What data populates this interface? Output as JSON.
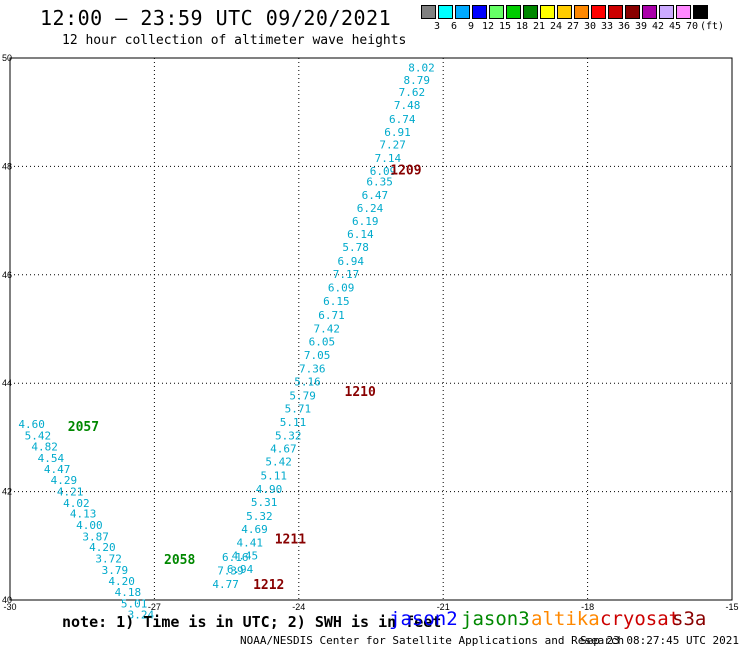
{
  "title": "12:00 – 23:59 UTC 09/20/2021",
  "subtitle": "12 hour collection of altimeter wave heights",
  "legend": {
    "unit": "(ft)",
    "items": [
      {
        "label": "3",
        "color": "#808080"
      },
      {
        "label": "6",
        "color": "#00ffff"
      },
      {
        "label": "9",
        "color": "#00aaff"
      },
      {
        "label": "12",
        "color": "#0000ff"
      },
      {
        "label": "15",
        "color": "#66ff66"
      },
      {
        "label": "18",
        "color": "#00cc00"
      },
      {
        "label": "21",
        "color": "#008800"
      },
      {
        "label": "24",
        "color": "#ffff00"
      },
      {
        "label": "27",
        "color": "#ffcc00"
      },
      {
        "label": "30",
        "color": "#ff8800"
      },
      {
        "label": "33",
        "color": "#ff0000"
      },
      {
        "label": "36",
        "color": "#cc0000"
      },
      {
        "label": "39",
        "color": "#880000"
      },
      {
        "label": "42",
        "color": "#aa00aa"
      },
      {
        "label": "45",
        "color": "#ccaaff"
      },
      {
        "label": "70",
        "color": "#ff88ff"
      },
      {
        "label": "",
        "color": "#000000"
      }
    ]
  },
  "footer": {
    "note": "note:  1) Time is in UTC;  2) SWH is in feet",
    "satellites": [
      {
        "name": "jason2",
        "color": "#0000ff"
      },
      {
        "name": "jason3",
        "color": "#008800"
      },
      {
        "name": "altika",
        "color": "#ff8800"
      },
      {
        "name": "cryosat",
        "color": "#cc0000"
      },
      {
        "name": "s3a",
        "color": "#880000"
      }
    ],
    "credit": "NOAA/NESDIS Center for Satellite Applications and Research",
    "timestamp": "Sep 23 08:27:45 UTC 2021"
  },
  "chart_data": {
    "type": "scatter",
    "title": "12:00 – 23:59 UTC 09/20/2021",
    "xlim": [
      -30,
      -15
    ],
    "ylim": [
      40,
      50
    ],
    "xticks": [
      "-30",
      "-27",
      "-24",
      "-21",
      "-18",
      "-15"
    ],
    "yticks": [
      "40",
      "42",
      "44",
      "46",
      "48",
      "50"
    ],
    "grid": true,
    "value_color": "#00aacc",
    "tracks": [
      {
        "pass_label": "1209",
        "pass_color": "#880000",
        "pass_at": {
          "x": -22.1,
          "y": 47.85
        },
        "points": [
          {
            "x": -21.45,
            "y": 49.75,
            "v": "8.02"
          },
          {
            "x": -21.55,
            "y": 49.52,
            "v": "8.79"
          },
          {
            "x": -21.65,
            "y": 49.3,
            "v": "7.62"
          },
          {
            "x": -21.75,
            "y": 49.06,
            "v": "7.48"
          },
          {
            "x": -21.85,
            "y": 48.8,
            "v": "6.74"
          },
          {
            "x": -21.95,
            "y": 48.56,
            "v": "6.91"
          },
          {
            "x": -22.05,
            "y": 48.33,
            "v": "7.27"
          },
          {
            "x": -22.15,
            "y": 48.08,
            "v": "7.14"
          },
          {
            "x": -22.25,
            "y": 47.84,
            "v": "6.09"
          },
          {
            "x": -22.32,
            "y": 47.65,
            "v": "6.35"
          },
          {
            "x": -22.42,
            "y": 47.4,
            "v": "6.47"
          },
          {
            "x": -22.52,
            "y": 47.16,
            "v": "6.24"
          },
          {
            "x": -22.62,
            "y": 46.92,
            "v": "6.19"
          },
          {
            "x": -22.72,
            "y": 46.68,
            "v": "6.14"
          },
          {
            "x": -22.82,
            "y": 46.44,
            "v": "5.78"
          },
          {
            "x": -22.92,
            "y": 46.18,
            "v": "6.94"
          },
          {
            "x": -23.02,
            "y": 45.94,
            "v": "7.17"
          }
        ]
      },
      {
        "pass_label": "1210",
        "pass_color": "#880000",
        "pass_at": {
          "x": -23.05,
          "y": 43.76
        },
        "points": [
          {
            "x": -23.12,
            "y": 45.69,
            "v": "6.09"
          },
          {
            "x": -23.22,
            "y": 45.44,
            "v": "6.15"
          },
          {
            "x": -23.32,
            "y": 45.18,
            "v": "6.71"
          },
          {
            "x": -23.42,
            "y": 44.94,
            "v": "7.42"
          },
          {
            "x": -23.52,
            "y": 44.7,
            "v": "6.05"
          },
          {
            "x": -23.62,
            "y": 44.45,
            "v": "7.05"
          },
          {
            "x": -23.72,
            "y": 44.2,
            "v": "7.36"
          },
          {
            "x": -23.82,
            "y": 43.96,
            "v": "5.16"
          },
          {
            "x": -23.92,
            "y": 43.7,
            "v": "5.79"
          }
        ]
      },
      {
        "pass_label": "1211",
        "pass_color": "#880000",
        "pass_at": {
          "x": -24.5,
          "y": 41.04
        },
        "points": [
          {
            "x": -24.02,
            "y": 43.46,
            "v": "5.71"
          },
          {
            "x": -24.12,
            "y": 43.21,
            "v": "5.11"
          },
          {
            "x": -24.22,
            "y": 42.96,
            "v": "5.32"
          },
          {
            "x": -24.32,
            "y": 42.72,
            "v": "4.67"
          },
          {
            "x": -24.42,
            "y": 42.48,
            "v": "5.42"
          },
          {
            "x": -24.52,
            "y": 42.22,
            "v": "5.11"
          },
          {
            "x": -24.62,
            "y": 41.97,
            "v": "4.90"
          },
          {
            "x": -24.72,
            "y": 41.73,
            "v": "5.31"
          },
          {
            "x": -24.82,
            "y": 41.48,
            "v": "5.32"
          },
          {
            "x": -24.92,
            "y": 41.24,
            "v": "4.69"
          },
          {
            "x": -25.02,
            "y": 40.99,
            "v": "4.41"
          },
          {
            "x": -25.12,
            "y": 40.75,
            "v": "4.45"
          },
          {
            "x": -25.22,
            "y": 40.5,
            "v": "6.94"
          }
        ]
      },
      {
        "pass_label": "1212",
        "pass_color": "#880000",
        "pass_at": {
          "x": -24.95,
          "y": 40.2
        },
        "points": [
          {
            "x": -25.32,
            "y": 40.72,
            "v": "6.16"
          },
          {
            "x": -25.42,
            "y": 40.47,
            "v": "7.39"
          },
          {
            "x": -25.52,
            "y": 40.22,
            "v": "4.77"
          }
        ]
      },
      {
        "pass_label": "2057",
        "pass_color": "#008800",
        "pass_at": {
          "x": -28.8,
          "y": 43.12
        },
        "points": [
          {
            "x": -29.55,
            "y": 43.17,
            "v": "4.60"
          },
          {
            "x": -29.42,
            "y": 42.96,
            "v": "5.42"
          },
          {
            "x": -29.28,
            "y": 42.76,
            "v": "4.82"
          },
          {
            "x": -29.15,
            "y": 42.55,
            "v": "4.54"
          },
          {
            "x": -29.02,
            "y": 42.34,
            "v": "4.47"
          },
          {
            "x": -28.88,
            "y": 42.14,
            "v": "4.29"
          },
          {
            "x": -28.75,
            "y": 41.93,
            "v": "4.21"
          },
          {
            "x": -28.62,
            "y": 41.72,
            "v": "4.02"
          },
          {
            "x": -28.48,
            "y": 41.52,
            "v": "4.13"
          }
        ]
      },
      {
        "pass_label": "2058",
        "pass_color": "#008800",
        "pass_at": {
          "x": -26.8,
          "y": 40.66
        },
        "points": [
          {
            "x": -28.35,
            "y": 41.31,
            "v": "4.00"
          },
          {
            "x": -28.22,
            "y": 41.1,
            "v": "3.87"
          },
          {
            "x": -28.08,
            "y": 40.9,
            "v": "4.20"
          },
          {
            "x": -27.95,
            "y": 40.69,
            "v": "3.72"
          },
          {
            "x": -27.82,
            "y": 40.48,
            "v": "3.79"
          },
          {
            "x": -27.68,
            "y": 40.28,
            "v": "4.20"
          },
          {
            "x": -27.55,
            "y": 40.07,
            "v": "4.18"
          },
          {
            "x": -27.42,
            "y": 39.86,
            "v": "5.01"
          },
          {
            "x": -27.28,
            "y": 39.66,
            "v": "3.24"
          }
        ]
      }
    ]
  }
}
